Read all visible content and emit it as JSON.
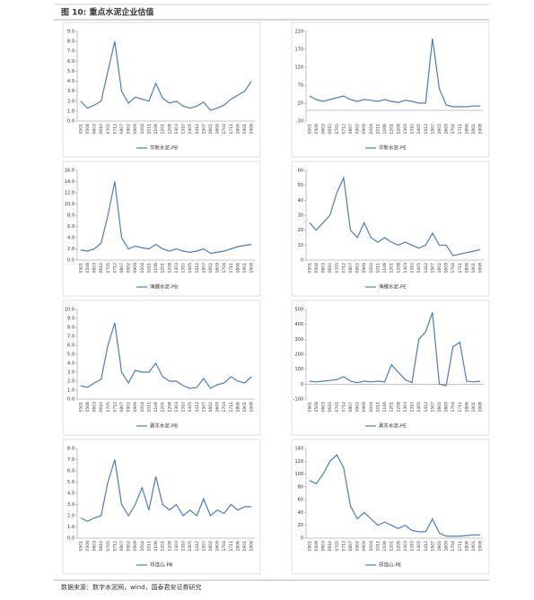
{
  "header": {
    "title": "图 10: 重点水泥企业估值"
  },
  "chart_data": [
    {
      "type": "line",
      "categories": [
        "0501",
        "0508",
        "0603",
        "0610",
        "0705",
        "0712",
        "0807",
        "0902",
        "0909",
        "1004",
        "1011",
        "1106",
        "1201",
        "1208",
        "1303",
        "1310",
        "1405",
        "1412",
        "1507",
        "1602",
        "1609",
        "1704",
        "1711",
        "1806",
        "1901",
        "1908"
      ],
      "series": [
        {
          "name": "华新水泥-PB",
          "color": "#4a7ebb",
          "values": [
            2.0,
            1.3,
            1.6,
            2.0,
            5.0,
            8.0,
            3.0,
            1.8,
            2.4,
            2.2,
            2.0,
            3.8,
            2.3,
            1.8,
            2.0,
            1.5,
            1.3,
            1.5,
            1.9,
            1.1,
            1.3,
            1.6,
            2.2,
            2.6,
            3.0,
            4.0
          ]
        }
      ],
      "ylim": [
        0,
        9
      ],
      "yticks": [
        {
          "value": 0,
          "label": "0.0"
        },
        {
          "value": 1,
          "label": "1.0"
        },
        {
          "value": 2,
          "label": "2.0"
        },
        {
          "value": 3,
          "label": "3.0"
        },
        {
          "value": 4,
          "label": "4.0"
        },
        {
          "value": 5,
          "label": "5.0"
        },
        {
          "value": 6,
          "label": "6.0"
        },
        {
          "value": 7,
          "label": "7.0"
        },
        {
          "value": 8,
          "label": "8.0"
        },
        {
          "value": 9,
          "label": "9.0"
        }
      ]
    },
    {
      "type": "line",
      "categories": [
        "0501",
        "0508",
        "0603",
        "0610",
        "0705",
        "0712",
        "0807",
        "0902",
        "0909",
        "1004",
        "1011",
        "1106",
        "1201",
        "1208",
        "1303",
        "1310",
        "1405",
        "1412",
        "1507",
        "1602",
        "1609",
        "1704",
        "1711",
        "1806",
        "1901",
        "1908"
      ],
      "series": [
        {
          "name": "华新水泥-PE",
          "color": "#4a7ebb",
          "values": [
            40,
            30,
            25,
            30,
            35,
            40,
            30,
            25,
            30,
            28,
            25,
            30,
            25,
            22,
            28,
            25,
            20,
            20,
            200,
            60,
            15,
            10,
            10,
            10,
            12,
            12
          ]
        }
      ],
      "ylim": [
        -30,
        220
      ],
      "yticks": [
        -30,
        20,
        70,
        120,
        170,
        220
      ]
    },
    {
      "type": "line",
      "categories": [
        "0501",
        "0508",
        "0603",
        "0610",
        "0705",
        "0712",
        "0807",
        "0902",
        "0909",
        "1004",
        "1011",
        "1106",
        "1201",
        "1208",
        "1303",
        "1310",
        "1405",
        "1412",
        "1507",
        "1602",
        "1609",
        "1704",
        "1711",
        "1806",
        "1901",
        "1908"
      ],
      "series": [
        {
          "name": "海螺水泥-PB",
          "color": "#4a7ebb",
          "values": [
            1.8,
            1.6,
            2.0,
            3.0,
            8.0,
            14.0,
            4.0,
            2.0,
            2.5,
            2.2,
            2.0,
            2.8,
            2.0,
            1.6,
            2.0,
            1.6,
            1.4,
            1.6,
            2.0,
            1.2,
            1.4,
            1.6,
            2.0,
            2.4,
            2.6,
            2.8
          ]
        }
      ],
      "ylim": [
        0,
        16
      ],
      "yticks": [
        {
          "value": 0,
          "label": "0.0"
        },
        {
          "value": 2,
          "label": "2.0"
        },
        {
          "value": 4,
          "label": "4.0"
        },
        {
          "value": 6,
          "label": "6.0"
        },
        {
          "value": 8,
          "label": "8.0"
        },
        {
          "value": 10,
          "label": "10.0"
        },
        {
          "value": 12,
          "label": "12.0"
        },
        {
          "value": 14,
          "label": "14.0"
        },
        {
          "value": 16,
          "label": "16.0"
        }
      ]
    },
    {
      "type": "line",
      "categories": [
        "0501",
        "0508",
        "0603",
        "0610",
        "0705",
        "0712",
        "0807",
        "0902",
        "0909",
        "1004",
        "1011",
        "1106",
        "1201",
        "1208",
        "1303",
        "1310",
        "1405",
        "1412",
        "1507",
        "1602",
        "1609",
        "1704",
        "1711",
        "1806",
        "1901",
        "1908"
      ],
      "series": [
        {
          "name": "海螺水泥-PE",
          "color": "#4a7ebb",
          "values": [
            25,
            20,
            25,
            30,
            45,
            55,
            20,
            15,
            25,
            15,
            12,
            15,
            12,
            10,
            12,
            10,
            8,
            10,
            18,
            10,
            10,
            3,
            4,
            5,
            6,
            7
          ]
        }
      ],
      "ylim": [
        0,
        60
      ],
      "yticks": [
        0,
        10,
        20,
        30,
        40,
        50,
        60
      ]
    },
    {
      "type": "line",
      "categories": [
        "0501",
        "0508",
        "0603",
        "0610",
        "0705",
        "0712",
        "0807",
        "0902",
        "0909",
        "1004",
        "1011",
        "1106",
        "1201",
        "1208",
        "1303",
        "1310",
        "1405",
        "1412",
        "1507",
        "1602",
        "1609",
        "1704",
        "1711",
        "1806",
        "1901",
        "1908"
      ],
      "series": [
        {
          "name": "冀东水泥-PB",
          "color": "#4a7ebb",
          "values": [
            1.5,
            1.3,
            1.8,
            2.2,
            6.0,
            8.5,
            3.0,
            1.8,
            3.2,
            3.0,
            3.0,
            4.0,
            2.5,
            2.0,
            2.0,
            1.5,
            1.2,
            1.3,
            2.3,
            1.2,
            1.6,
            1.8,
            2.5,
            2.0,
            1.8,
            2.5
          ]
        }
      ],
      "ylim": [
        0,
        10
      ],
      "yticks": [
        {
          "value": 0,
          "label": "0.0"
        },
        {
          "value": 1,
          "label": "1.0"
        },
        {
          "value": 2,
          "label": "2.0"
        },
        {
          "value": 3,
          "label": "3.0"
        },
        {
          "value": 4,
          "label": "4.0"
        },
        {
          "value": 5,
          "label": "5.0"
        },
        {
          "value": 6,
          "label": "6.0"
        },
        {
          "value": 7,
          "label": "7.0"
        },
        {
          "value": 8,
          "label": "8.0"
        },
        {
          "value": 9,
          "label": "9.0"
        },
        {
          "value": 10,
          "label": "10.0"
        }
      ]
    },
    {
      "type": "line",
      "categories": [
        "0501",
        "0508",
        "0603",
        "0610",
        "0705",
        "0712",
        "0807",
        "0902",
        "0909",
        "1004",
        "1011",
        "1106",
        "1201",
        "1208",
        "1303",
        "1310",
        "1405",
        "1412",
        "1507",
        "1602",
        "1609",
        "1704",
        "1711",
        "1806",
        "1901",
        "1908"
      ],
      "series": [
        {
          "name": "冀东水泥-PE",
          "color": "#4a7ebb",
          "values": [
            20,
            15,
            20,
            25,
            30,
            50,
            20,
            10,
            20,
            15,
            20,
            15,
            130,
            80,
            30,
            10,
            300,
            350,
            480,
            0,
            -10,
            250,
            280,
            20,
            15,
            20
          ]
        }
      ],
      "ylim": [
        -100,
        500
      ],
      "yticks": [
        -100,
        0,
        100,
        200,
        300,
        400,
        500
      ]
    },
    {
      "type": "line",
      "categories": [
        "0501",
        "0508",
        "0603",
        "0610",
        "0705",
        "0712",
        "0807",
        "0902",
        "0909",
        "1004",
        "1011",
        "1106",
        "1201",
        "1208",
        "1303",
        "1310",
        "1405",
        "1412",
        "1507",
        "1602",
        "1609",
        "1704",
        "1711",
        "1806",
        "1901",
        "1908"
      ],
      "series": [
        {
          "name": "祁连山-PB",
          "color": "#4a7ebb",
          "values": [
            1.8,
            1.5,
            1.8,
            2.0,
            5.0,
            7.0,
            3.0,
            2.0,
            3.0,
            4.5,
            2.5,
            5.5,
            3.0,
            2.5,
            3.0,
            2.0,
            2.5,
            2.0,
            3.5,
            2.0,
            2.5,
            2.2,
            3.0,
            2.5,
            2.8,
            2.8
          ]
        }
      ],
      "ylim": [
        0,
        8
      ],
      "yticks": [
        {
          "value": 0,
          "label": "0.0"
        },
        {
          "value": 1,
          "label": "1.0"
        },
        {
          "value": 2,
          "label": "2.0"
        },
        {
          "value": 3,
          "label": "3.0"
        },
        {
          "value": 4,
          "label": "4.0"
        },
        {
          "value": 5,
          "label": "5.0"
        },
        {
          "value": 6,
          "label": "6.0"
        },
        {
          "value": 7,
          "label": "7.0"
        },
        {
          "value": 8,
          "label": "8.0"
        }
      ]
    },
    {
      "type": "line",
      "categories": [
        "0501",
        "0508",
        "0603",
        "0610",
        "0705",
        "0712",
        "0807",
        "0902",
        "0909",
        "1004",
        "1011",
        "1106",
        "1201",
        "1208",
        "1303",
        "1310",
        "1405",
        "1412",
        "1507",
        "1602",
        "1609",
        "1704",
        "1711",
        "1806",
        "1901",
        "1908"
      ],
      "series": [
        {
          "name": "祁连山-PE",
          "color": "#4a7ebb",
          "values": [
            90,
            85,
            100,
            120,
            130,
            110,
            50,
            30,
            40,
            30,
            20,
            25,
            20,
            15,
            20,
            12,
            10,
            10,
            30,
            8,
            3,
            3,
            3,
            4,
            5,
            5
          ]
        }
      ],
      "ylim": [
        0,
        140
      ],
      "yticks": [
        0,
        20,
        40,
        60,
        80,
        100,
        120,
        140
      ]
    }
  ],
  "source": "数据来源：数字水泥网，wind，国泰君安证券研究"
}
